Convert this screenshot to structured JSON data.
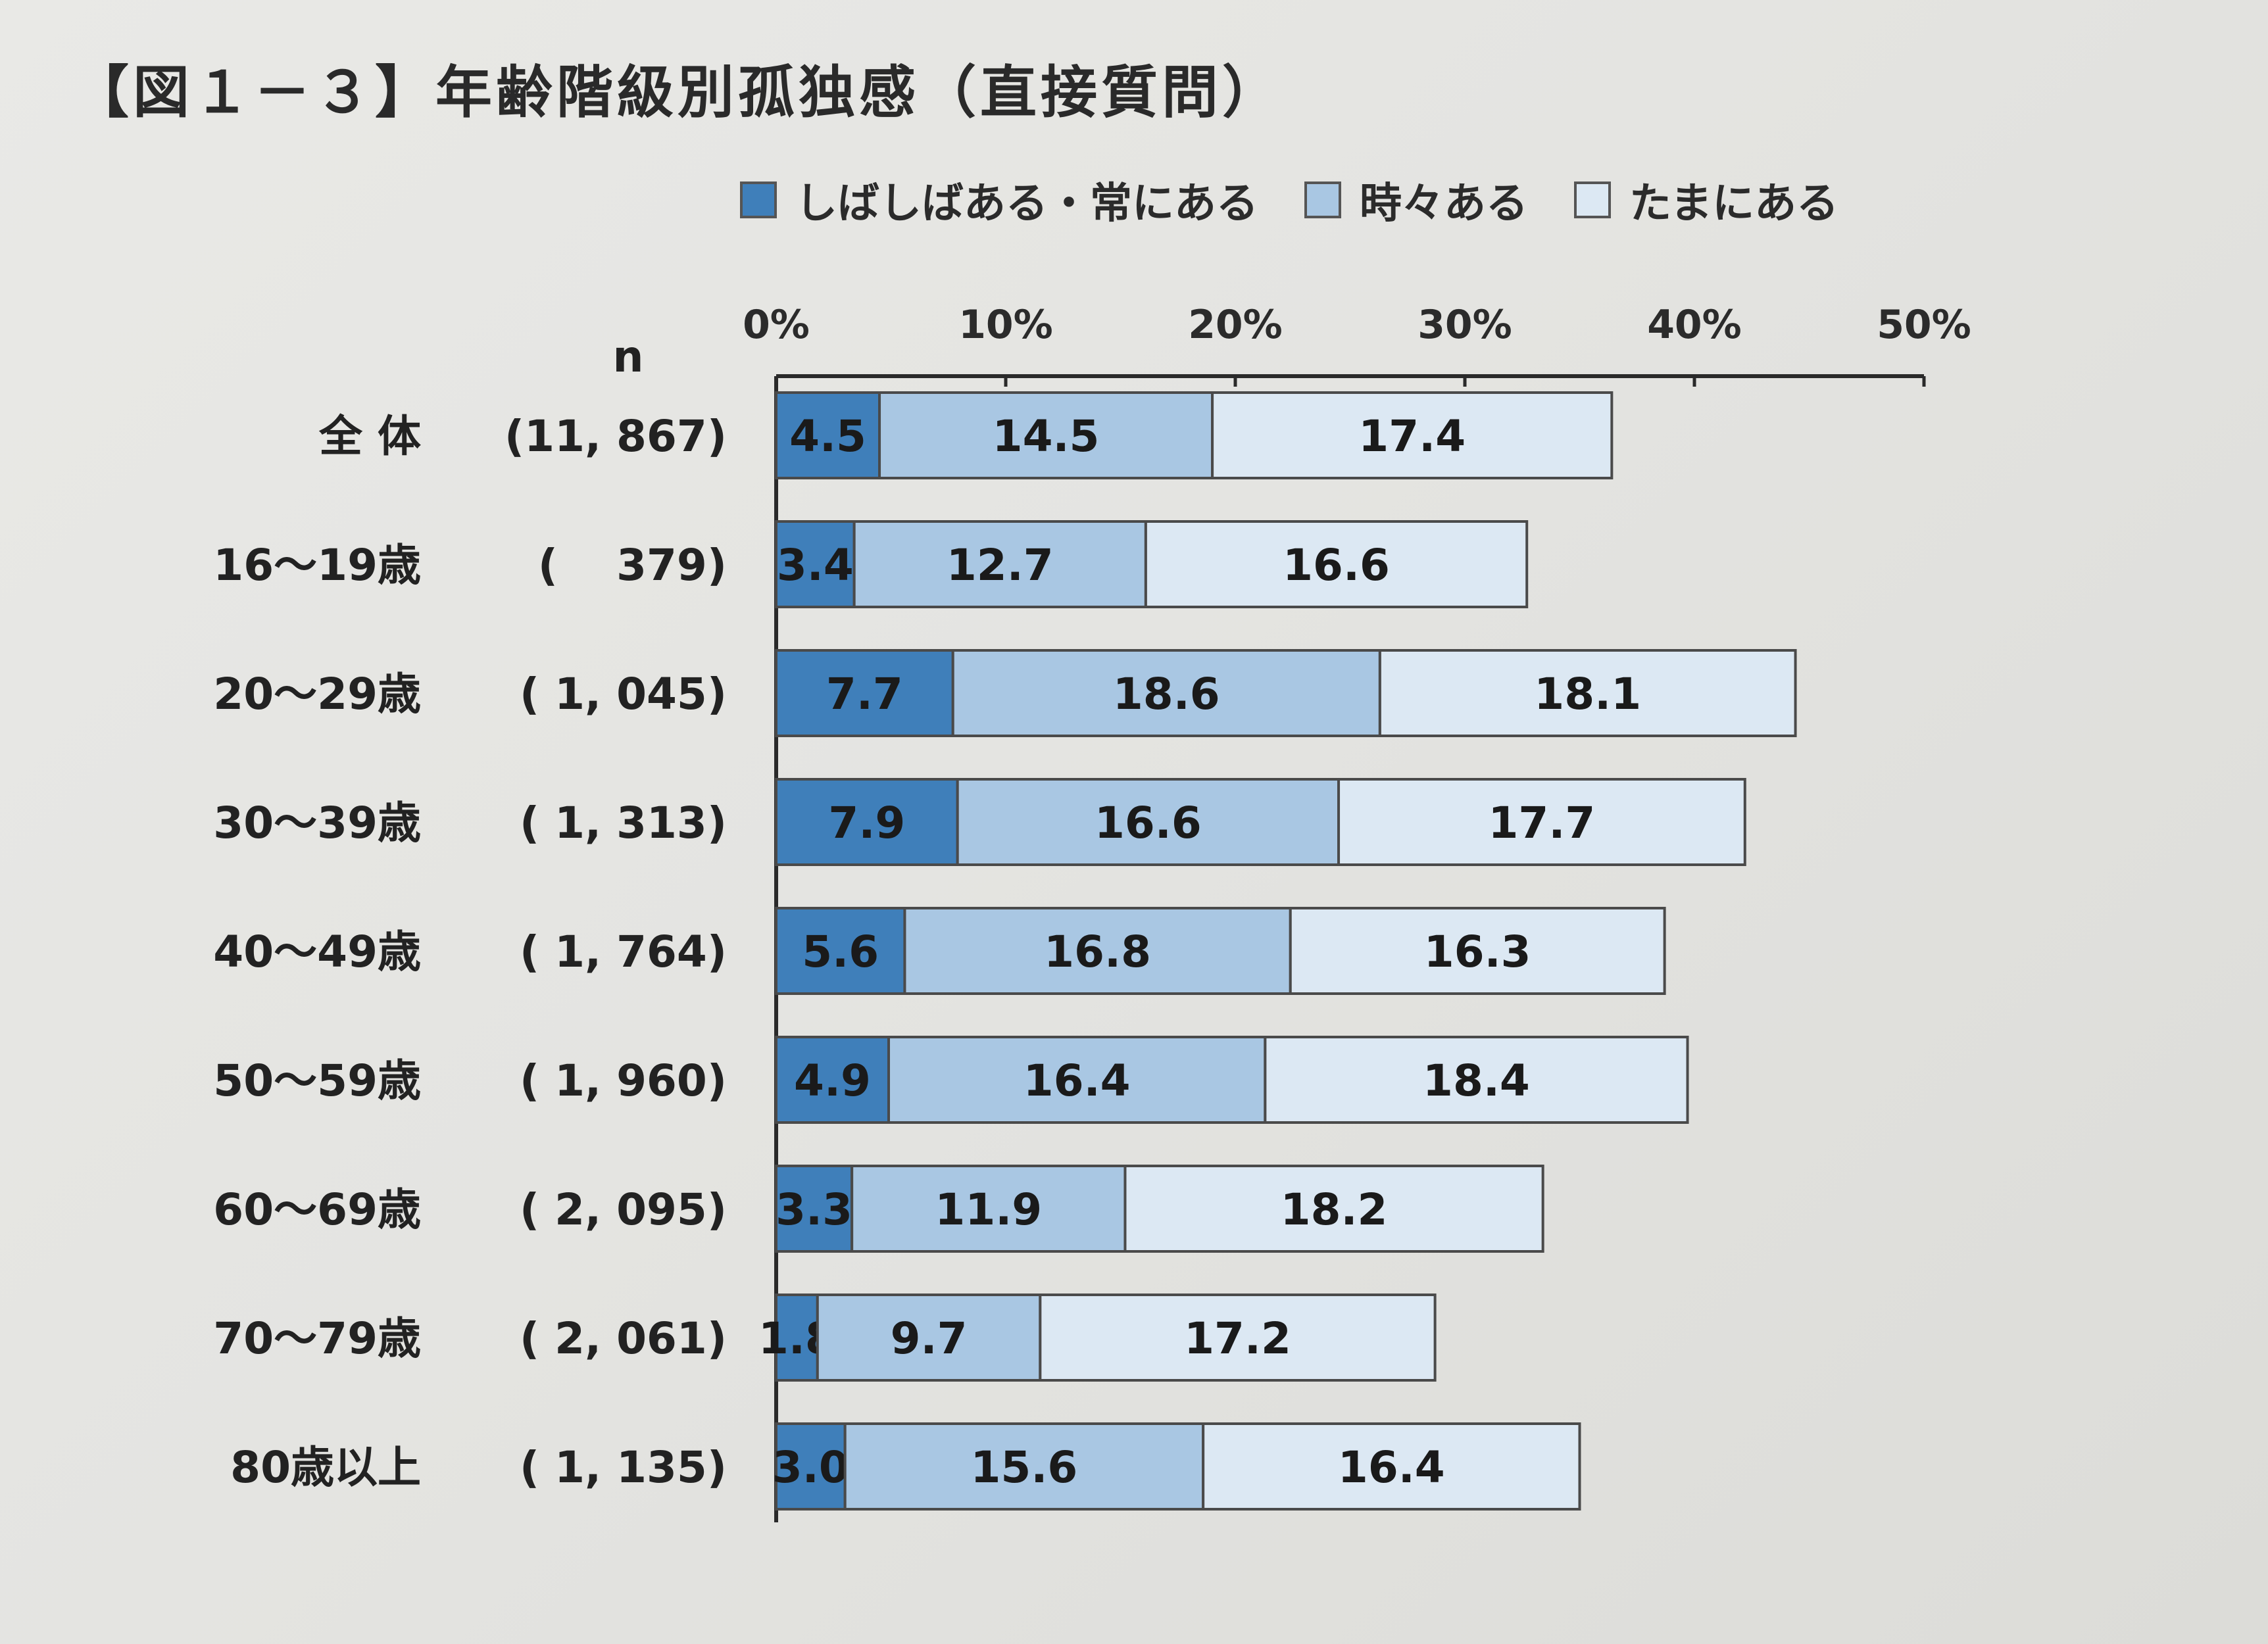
{
  "title": "【図１－３】年齢階級別孤独感（直接質問）",
  "colors": {
    "often": "#3f7fba",
    "sometimes": "#a9c7e3",
    "rarely": "#dce8f3",
    "axis": "#2a2a2a"
  },
  "legend": [
    {
      "label": "しばしばある・常にある",
      "color_key": "often"
    },
    {
      "label": "時々ある",
      "color_key": "sometimes"
    },
    {
      "label": "たまにある",
      "color_key": "rarely"
    }
  ],
  "n_header": "n",
  "chart_data": {
    "type": "bar",
    "orientation": "horizontal",
    "stacked": true,
    "title": "【図１－３】年齢階級別孤独感（直接質問）",
    "x_ticks": [
      "0%",
      "10%",
      "20%",
      "30%",
      "40%",
      "50%"
    ],
    "xlim": [
      0,
      50
    ],
    "categories": [
      "全 体",
      "16～19歳",
      "20～29歳",
      "30～39歳",
      "40～49歳",
      "50～59歳",
      "60～69歳",
      "70～79歳",
      "80歳以上"
    ],
    "n_values": [
      "(11, 867)",
      "(　 379)",
      "( 1, 045)",
      "( 1, 313)",
      "( 1, 764)",
      "( 1, 960)",
      "( 2, 095)",
      "( 2, 061)",
      "( 1, 135)"
    ],
    "series": [
      {
        "name": "しばしばある・常にある",
        "values": [
          4.5,
          3.4,
          7.7,
          7.9,
          5.6,
          4.9,
          3.3,
          1.8,
          3.0
        ]
      },
      {
        "name": "時々ある",
        "values": [
          14.5,
          12.7,
          18.6,
          16.6,
          16.8,
          16.4,
          11.9,
          9.7,
          15.6
        ]
      },
      {
        "name": "たまにある",
        "values": [
          17.4,
          16.6,
          18.1,
          17.7,
          16.3,
          18.4,
          18.2,
          17.2,
          16.4
        ]
      }
    ],
    "legend_position": "top",
    "grid": false
  }
}
